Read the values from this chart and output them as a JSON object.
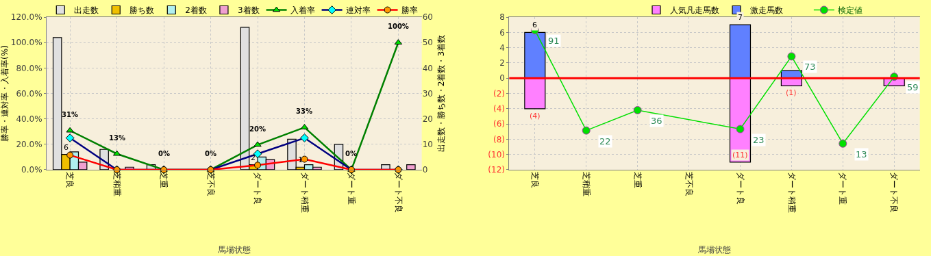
{
  "chart_data": [
    {
      "type": "bar",
      "categories": [
        "芝良",
        "芝稍重",
        "芝重",
        "芝不良",
        "ダート良",
        "ダート稍重",
        "ダート重",
        "ダート不良"
      ],
      "xlabel": "馬場状態",
      "ylabel": "勝率・連対率・入着率(%)",
      "y2label": "出走数・勝ち数・2着数・3着数",
      "ylim": [
        0,
        120
      ],
      "yticks": [
        {
          "value": 0,
          "label": "0.0%"
        },
        {
          "value": 20,
          "label": "20.0%"
        },
        {
          "value": 40,
          "label": "40.0%"
        },
        {
          "value": 60,
          "label": "60.0%"
        },
        {
          "value": 80,
          "label": "80.0%"
        },
        {
          "value": 100,
          "label": "100.0%"
        },
        {
          "value": 120,
          "label": "120.0%"
        }
      ],
      "y2lim": [
        0,
        60
      ],
      "y2ticks": [
        0,
        10,
        20,
        30,
        40,
        50,
        60
      ],
      "grid": true,
      "legend": "top",
      "series": [
        {
          "name": "出走数",
          "color": "#e0e0e0",
          "axis": "y2",
          "values": [
            52,
            8,
            2,
            0,
            56,
            12,
            10,
            2
          ]
        },
        {
          "name": "勝ち数",
          "color": "#f0c000",
          "axis": "y2",
          "values": [
            6,
            0,
            0,
            0,
            2,
            1,
            0,
            0
          ],
          "value_labels": [
            "6",
            null,
            null,
            null,
            "2",
            "1",
            null,
            null
          ]
        },
        {
          "name": "2着数",
          "color": "#b0f0f0",
          "axis": "y2",
          "values": [
            7,
            0,
            0,
            0,
            5,
            2,
            0,
            0
          ]
        },
        {
          "name": "3着数",
          "color": "#f0a0d0",
          "axis": "y2",
          "values": [
            3,
            1,
            0,
            0,
            4,
            1,
            0,
            2
          ]
        },
        {
          "name": "入着率",
          "type": "line",
          "marker": "triangle",
          "color": "#008000",
          "values": [
            30.8,
            12.5,
            0,
            0,
            19.6,
            33.3,
            0,
            100
          ],
          "value_labels": [
            "31%",
            "13%",
            "0%",
            "0%",
            "20%",
            "33%",
            "0%",
            "100%"
          ]
        },
        {
          "name": "連対率",
          "type": "line",
          "marker": "diamond",
          "color": "#000080",
          "values": [
            25,
            0,
            0,
            0,
            12.5,
            25,
            0,
            0
          ]
        },
        {
          "name": "勝率",
          "type": "line",
          "marker": "circle",
          "color": "#ff0000",
          "values": [
            11.5,
            0,
            0,
            0,
            3.6,
            8.3,
            0,
            0
          ]
        }
      ]
    },
    {
      "type": "bar",
      "stacked": true,
      "categories": [
        "芝良",
        "芝稍重",
        "芝重",
        "芝不良",
        "ダート良",
        "ダート稍重",
        "ダート重",
        "ダート不良"
      ],
      "xlabel": "馬場状態",
      "ylim": [
        -12,
        8
      ],
      "y2lim": [
        -5,
        100
      ],
      "yticks": [
        {
          "value": -12,
          "label": "(12)"
        },
        {
          "value": -10,
          "label": "(10)"
        },
        {
          "value": -8,
          "label": "(8)"
        },
        {
          "value": -6,
          "label": "(6)"
        },
        {
          "value": -4,
          "label": "(4)"
        },
        {
          "value": -2,
          "label": "(2)"
        },
        0,
        2,
        4,
        6,
        8
      ],
      "grid": true,
      "legend": "top",
      "ref_lines": [
        {
          "axis": "y",
          "value": 0,
          "color": "#ff0000"
        }
      ],
      "series": [
        {
          "name": "人気凡走馬数",
          "color": "#ff80ff",
          "values": [
            -4,
            null,
            null,
            null,
            -11,
            -1,
            null,
            -1
          ],
          "value_labels": [
            "(4)",
            null,
            null,
            null,
            "(11)",
            "(1)",
            null,
            null
          ]
        },
        {
          "name": "激走馬数",
          "color": "#6080ff",
          "values": [
            6,
            null,
            null,
            null,
            7,
            1,
            null,
            null
          ],
          "value_labels": [
            "6",
            null,
            null,
            null,
            "7",
            null,
            null,
            null
          ]
        },
        {
          "name": "検定値",
          "type": "line",
          "marker": "circle",
          "color": "#00e000",
          "axis": "y2",
          "values": [
            91,
            22,
            36,
            null,
            23,
            73,
            13,
            59
          ],
          "value_labels": [
            "91",
            "22",
            "36",
            null,
            "23",
            "73",
            "13",
            "59"
          ]
        }
      ]
    }
  ]
}
